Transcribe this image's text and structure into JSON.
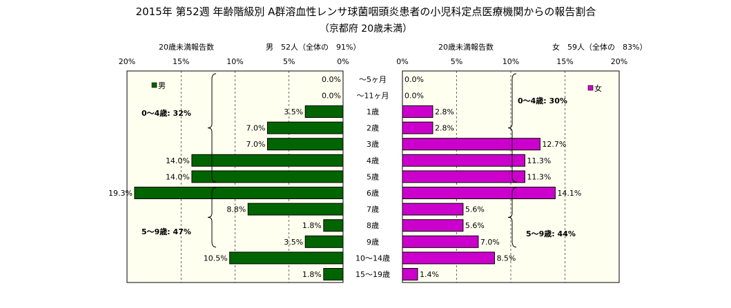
{
  "title": "2015年 第52週 年齢階級別 A群溶血性レンサ球菌咽頭炎患者の小児科定点医療機関からの報告割合",
  "subtitle": "（京都府 20歳未満）",
  "colors": {
    "male": "#006400",
    "female": "#cc00cc",
    "plot_bg": "#fffff0",
    "grid": "#000000"
  },
  "chart_data": [
    {
      "type": "bar",
      "orientation": "horizontal",
      "direction": "right-to-left",
      "header_left": "20歳未満報告数",
      "header_right": "男　52人（全体の　91%）",
      "legend": "男",
      "legend_position": "top-left",
      "xlim": [
        0,
        20
      ],
      "ticks": [
        "20%",
        "15%",
        "10%",
        "5%",
        "0%"
      ],
      "tick_values": [
        20,
        15,
        10,
        5,
        0
      ],
      "categories": [
        "～5ヶ月",
        "～11ヶ月",
        "1歳",
        "2歳",
        "3歳",
        "4歳",
        "5歳",
        "6歳",
        "7歳",
        "8歳",
        "9歳",
        "10～14歳",
        "15～19歳"
      ],
      "values": [
        0.0,
        0.0,
        3.5,
        7.0,
        7.0,
        14.0,
        14.0,
        19.3,
        8.8,
        1.8,
        3.5,
        10.5,
        1.8
      ],
      "labels": [
        "0.0%",
        "0.0%",
        "3.5%",
        "7.0%",
        "7.0%",
        "14.0%",
        "14.0%",
        "19.3%",
        "8.8%",
        "1.8%",
        "3.5%",
        "10.5%",
        "1.8%"
      ],
      "annotations": [
        "0～4歳: 32%",
        "5～9歳: 47%"
      ]
    },
    {
      "type": "bar",
      "orientation": "horizontal",
      "direction": "left-to-right",
      "header_left": "20歳未満報告数",
      "header_right": "女　59人（全体の　83%）",
      "legend": "女",
      "legend_position": "top-right",
      "xlim": [
        0,
        20
      ],
      "ticks": [
        "0%",
        "5%",
        "10%",
        "15%",
        "20%"
      ],
      "tick_values": [
        0,
        5,
        10,
        15,
        20
      ],
      "categories": [
        "～5ヶ月",
        "～11ヶ月",
        "1歳",
        "2歳",
        "3歳",
        "4歳",
        "5歳",
        "6歳",
        "7歳",
        "8歳",
        "9歳",
        "10～14歳",
        "15～19歳"
      ],
      "values": [
        0.0,
        0.0,
        2.8,
        2.8,
        12.7,
        11.3,
        11.3,
        14.1,
        5.6,
        5.6,
        7.0,
        8.5,
        1.4
      ],
      "labels": [
        "0.0%",
        "0.0%",
        "2.8%",
        "2.8%",
        "12.7%",
        "11.3%",
        "11.3%",
        "14.1%",
        "5.6%",
        "5.6%",
        "7.0%",
        "8.5%",
        "1.4%"
      ],
      "annotations": [
        "0～4歳: 30%",
        "5～9歳: 44%"
      ]
    }
  ]
}
